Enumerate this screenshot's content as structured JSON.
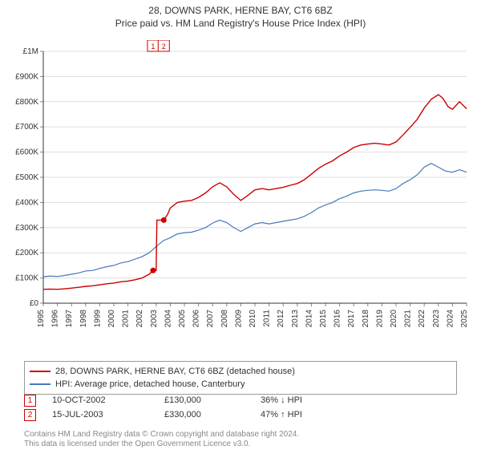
{
  "title": "28, DOWNS PARK, HERNE BAY, CT6 6BZ",
  "subtitle": "Price paid vs. HM Land Registry's House Price Index (HPI)",
  "chart": {
    "type": "line",
    "background_color": "#ffffff",
    "grid_color": "#dddddd",
    "ytick_line_color": "#888888",
    "axis_line_color": "#333333",
    "y": {
      "min": 0,
      "max": 1000000,
      "step": 100000,
      "labels": [
        "£0",
        "£100K",
        "£200K",
        "£300K",
        "£400K",
        "£500K",
        "£600K",
        "£700K",
        "£800K",
        "£900K",
        "£1M"
      ],
      "fontsize": 10
    },
    "x": {
      "min": 1995,
      "max": 2025,
      "step": 1,
      "labels": [
        "1995",
        "1996",
        "1997",
        "1998",
        "1999",
        "2000",
        "2001",
        "2002",
        "2003",
        "2004",
        "2005",
        "2006",
        "2007",
        "2008",
        "2009",
        "2010",
        "2011",
        "2012",
        "2013",
        "2014",
        "2015",
        "2016",
        "2017",
        "2018",
        "2019",
        "2020",
        "2021",
        "2022",
        "2023",
        "2024",
        "2025"
      ],
      "label_rotation": -90,
      "fontsize": 10
    },
    "series": [
      {
        "name": "hpi",
        "label": "HPI: Average price, detached house, Canterbury",
        "color": "#4878b8",
        "line_width": 1.2,
        "xy": [
          [
            1995,
            105000
          ],
          [
            1995.5,
            108000
          ],
          [
            1996,
            106000
          ],
          [
            1996.5,
            110000
          ],
          [
            1997,
            115000
          ],
          [
            1997.5,
            120000
          ],
          [
            1998,
            128000
          ],
          [
            1998.5,
            130000
          ],
          [
            1999,
            138000
          ],
          [
            1999.5,
            145000
          ],
          [
            2000,
            150000
          ],
          [
            2000.5,
            160000
          ],
          [
            2001,
            165000
          ],
          [
            2001.5,
            175000
          ],
          [
            2002,
            185000
          ],
          [
            2002.5,
            200000
          ],
          [
            2003,
            225000
          ],
          [
            2003.5,
            248000
          ],
          [
            2004,
            260000
          ],
          [
            2004.5,
            275000
          ],
          [
            2005,
            280000
          ],
          [
            2005.5,
            282000
          ],
          [
            2006,
            290000
          ],
          [
            2006.5,
            300000
          ],
          [
            2007,
            318000
          ],
          [
            2007.5,
            330000
          ],
          [
            2008,
            320000
          ],
          [
            2008.5,
            300000
          ],
          [
            2009,
            285000
          ],
          [
            2009.5,
            300000
          ],
          [
            2010,
            315000
          ],
          [
            2010.5,
            320000
          ],
          [
            2011,
            315000
          ],
          [
            2011.5,
            320000
          ],
          [
            2012,
            325000
          ],
          [
            2012.5,
            330000
          ],
          [
            2013,
            335000
          ],
          [
            2013.5,
            345000
          ],
          [
            2014,
            360000
          ],
          [
            2014.5,
            378000
          ],
          [
            2015,
            390000
          ],
          [
            2015.5,
            400000
          ],
          [
            2016,
            415000
          ],
          [
            2016.5,
            425000
          ],
          [
            2017,
            438000
          ],
          [
            2017.5,
            445000
          ],
          [
            2018,
            448000
          ],
          [
            2018.5,
            450000
          ],
          [
            2019,
            448000
          ],
          [
            2019.5,
            445000
          ],
          [
            2020,
            455000
          ],
          [
            2020.5,
            475000
          ],
          [
            2021,
            490000
          ],
          [
            2021.5,
            510000
          ],
          [
            2022,
            540000
          ],
          [
            2022.5,
            555000
          ],
          [
            2023,
            540000
          ],
          [
            2023.5,
            525000
          ],
          [
            2024,
            520000
          ],
          [
            2024.5,
            530000
          ],
          [
            2025,
            520000
          ]
        ]
      },
      {
        "name": "price-paid",
        "label": "28, DOWNS PARK, HERNE BAY, CT6 6BZ (detached house)",
        "color": "#cc0000",
        "line_width": 1.4,
        "xy": [
          [
            1995,
            55000
          ],
          [
            1995.5,
            56000
          ],
          [
            1996,
            55000
          ],
          [
            1996.5,
            57000
          ],
          [
            1997,
            60000
          ],
          [
            1997.5,
            63000
          ],
          [
            1998,
            67000
          ],
          [
            1998.5,
            69000
          ],
          [
            1999,
            73000
          ],
          [
            1999.5,
            77000
          ],
          [
            2000,
            80000
          ],
          [
            2000.5,
            85000
          ],
          [
            2001,
            88000
          ],
          [
            2001.5,
            93000
          ],
          [
            2002,
            100000
          ],
          [
            2002.5,
            115000
          ],
          [
            2002.78,
            130000
          ],
          [
            2003.0,
            130000
          ],
          [
            2003.05,
            330000
          ],
          [
            2003.54,
            330000
          ],
          [
            2003.8,
            352000
          ],
          [
            2004,
            378000
          ],
          [
            2004.5,
            400000
          ],
          [
            2005,
            405000
          ],
          [
            2005.5,
            408000
          ],
          [
            2006,
            420000
          ],
          [
            2006.5,
            438000
          ],
          [
            2007,
            462000
          ],
          [
            2007.5,
            478000
          ],
          [
            2008,
            462000
          ],
          [
            2008.5,
            432000
          ],
          [
            2009,
            408000
          ],
          [
            2009.5,
            428000
          ],
          [
            2010,
            450000
          ],
          [
            2010.5,
            455000
          ],
          [
            2011,
            450000
          ],
          [
            2011.5,
            455000
          ],
          [
            2012,
            460000
          ],
          [
            2012.5,
            468000
          ],
          [
            2013,
            475000
          ],
          [
            2013.5,
            490000
          ],
          [
            2014,
            512000
          ],
          [
            2014.5,
            535000
          ],
          [
            2015,
            552000
          ],
          [
            2015.5,
            565000
          ],
          [
            2016,
            585000
          ],
          [
            2016.5,
            600000
          ],
          [
            2017,
            618000
          ],
          [
            2017.5,
            628000
          ],
          [
            2018,
            632000
          ],
          [
            2018.5,
            635000
          ],
          [
            2019,
            632000
          ],
          [
            2019.5,
            628000
          ],
          [
            2020,
            640000
          ],
          [
            2020.5,
            668000
          ],
          [
            2021,
            698000
          ],
          [
            2021.5,
            730000
          ],
          [
            2022,
            775000
          ],
          [
            2022.5,
            810000
          ],
          [
            2023,
            828000
          ],
          [
            2023.3,
            815000
          ],
          [
            2023.7,
            780000
          ],
          [
            2024,
            770000
          ],
          [
            2024.5,
            800000
          ],
          [
            2025,
            772000
          ]
        ]
      }
    ],
    "sale_markers": [
      {
        "n": "1",
        "year": 2002.78,
        "price": 130000
      },
      {
        "n": "2",
        "year": 2003.54,
        "price": 330000
      }
    ],
    "top_markers": [
      {
        "n": "1",
        "year": 2002.78
      },
      {
        "n": "2",
        "year": 2003.54
      }
    ]
  },
  "legend": {
    "rows": [
      {
        "color": "#cc0000",
        "label": "28, DOWNS PARK, HERNE BAY, CT6 6BZ (detached house)"
      },
      {
        "color": "#4878b8",
        "label": "HPI: Average price, detached house, Canterbury"
      }
    ]
  },
  "sales_table": {
    "rows": [
      {
        "n": "1",
        "date": "10-OCT-2002",
        "price": "£130,000",
        "pct": "36% ↓ HPI"
      },
      {
        "n": "2",
        "date": "15-JUL-2003",
        "price": "£330,000",
        "pct": "47% ↑ HPI"
      }
    ]
  },
  "footnote_l1": "Contains HM Land Registry data © Crown copyright and database right 2024.",
  "footnote_l2": "This data is licensed under the Open Government Licence v3.0."
}
